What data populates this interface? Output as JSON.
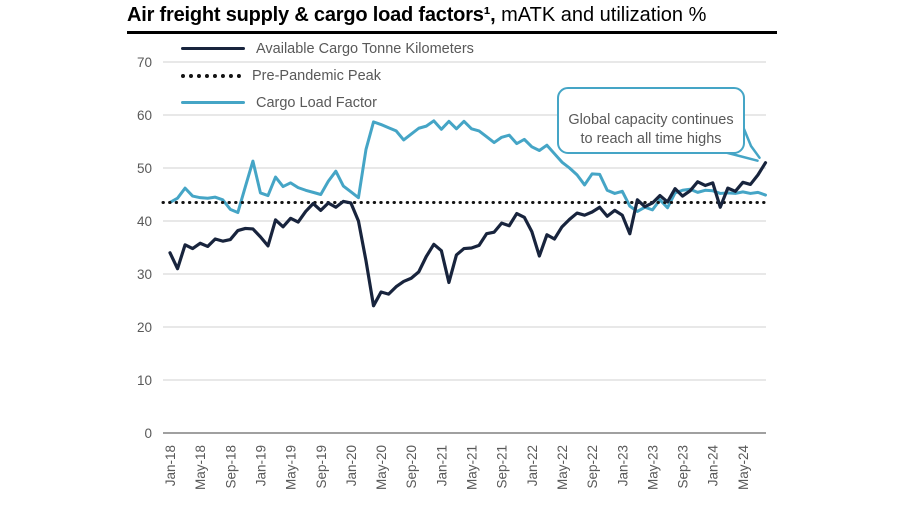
{
  "header": {
    "title_bold": "Air freight supply & cargo load factors¹,",
    "title_regular": " mATK and utilization %"
  },
  "legend": {
    "items": [
      {
        "label": "Available Cargo Tonne Kilometers",
        "color": "#18243d",
        "style": "solid"
      },
      {
        "label": "Pre-Pandemic Peak",
        "color": "#131313",
        "style": "dotted"
      },
      {
        "label": "Cargo Load Factor",
        "color": "#45a5c6",
        "style": "solid"
      }
    ]
  },
  "annotation": {
    "text": "Global capacity continues\nto reach all time highs",
    "border_color": "#45a5c6",
    "text_color": "#595959"
  },
  "colors": {
    "actk_line": "#18243d",
    "load_factor_line": "#45a5c6",
    "pre_pandemic_dotted": "#131313",
    "axis_text": "#595959",
    "gridline": "#d9d9d9",
    "axis_line": "#808080",
    "background": "#ffffff"
  },
  "chart_data": {
    "type": "line",
    "title": "Air freight supply & cargo load factors, mATK and utilization %",
    "ylim": [
      0,
      70
    ],
    "yticks": [
      0,
      10,
      20,
      30,
      40,
      50,
      60,
      70
    ],
    "grid": "horizontal",
    "legend_position": "top-left",
    "x_tick_every": 4,
    "x": [
      "Jan-18",
      "Feb-18",
      "Mar-18",
      "Apr-18",
      "May-18",
      "Jun-18",
      "Jul-18",
      "Aug-18",
      "Sep-18",
      "Oct-18",
      "Nov-18",
      "Dec-18",
      "Jan-19",
      "Feb-19",
      "Mar-19",
      "Apr-19",
      "May-19",
      "Jun-19",
      "Jul-19",
      "Aug-19",
      "Sep-19",
      "Oct-19",
      "Nov-19",
      "Dec-19",
      "Jan-20",
      "Feb-20",
      "Mar-20",
      "Apr-20",
      "May-20",
      "Jun-20",
      "Jul-20",
      "Aug-20",
      "Sep-20",
      "Oct-20",
      "Nov-20",
      "Dec-20",
      "Jan-21",
      "Feb-21",
      "Mar-21",
      "Apr-21",
      "May-21",
      "Jun-21",
      "Jul-21",
      "Aug-21",
      "Sep-21",
      "Oct-21",
      "Nov-21",
      "Dec-21",
      "Jan-22",
      "Feb-22",
      "Mar-22",
      "Apr-22",
      "May-22",
      "Jun-22",
      "Jul-22",
      "Aug-22",
      "Sep-22",
      "Oct-22",
      "Nov-22",
      "Dec-22",
      "Jan-23",
      "Feb-23",
      "Mar-23",
      "Apr-23",
      "May-23",
      "Jun-23",
      "Jul-23",
      "Aug-23",
      "Sep-23",
      "Oct-23",
      "Nov-23",
      "Dec-23",
      "Jan-24",
      "Feb-24",
      "Mar-24",
      "Apr-24",
      "May-24",
      "Jun-24",
      "Jul-24",
      "Aug-24"
    ],
    "series": [
      {
        "name": "Available Cargo Tonne Kilometers",
        "color": "#18243d",
        "style": "solid",
        "width": 3.2,
        "values": [
          34.0,
          31.0,
          35.5,
          34.8,
          35.8,
          35.2,
          36.6,
          36.2,
          36.5,
          38.2,
          38.6,
          38.5,
          37.0,
          35.3,
          40.2,
          38.9,
          40.5,
          39.8,
          41.8,
          43.3,
          42.0,
          43.4,
          42.6,
          43.7,
          43.4,
          40.0,
          32.5,
          24.0,
          26.6,
          26.2,
          27.6,
          28.6,
          29.2,
          30.4,
          33.3,
          35.6,
          34.4,
          28.4,
          33.6,
          34.8,
          34.9,
          35.4,
          37.6,
          37.9,
          39.6,
          39.1,
          41.4,
          40.7,
          38.0,
          33.4,
          37.4,
          36.6,
          38.9,
          40.3,
          41.5,
          41.1,
          41.7,
          42.6,
          40.9,
          42.0,
          41.1,
          37.6,
          44.0,
          42.7,
          43.4,
          44.8,
          43.6,
          46.1,
          44.7,
          45.7,
          47.4,
          46.7,
          47.2,
          42.6,
          46.2,
          45.6,
          47.3,
          46.9,
          48.7,
          51.0
        ]
      },
      {
        "name": "Cargo Load Factor",
        "color": "#45a5c6",
        "style": "solid",
        "width": 3,
        "values": [
          43.5,
          44.3,
          46.2,
          44.7,
          44.4,
          44.3,
          44.5,
          44.0,
          42.2,
          41.6,
          46.5,
          51.3,
          45.3,
          44.8,
          48.3,
          46.5,
          47.2,
          46.3,
          45.8,
          45.4,
          45.0,
          47.5,
          49.4,
          46.6,
          45.5,
          44.4,
          53.5,
          58.7,
          58.2,
          57.6,
          57.0,
          55.3,
          56.4,
          57.5,
          57.9,
          58.9,
          57.3,
          58.8,
          57.4,
          58.8,
          57.4,
          57.0,
          55.9,
          54.8,
          55.8,
          56.2,
          54.6,
          55.4,
          54.0,
          53.3,
          54.3,
          52.7,
          51.1,
          50.0,
          48.7,
          46.8,
          48.9,
          48.8,
          45.8,
          45.2,
          45.6,
          42.8,
          41.8,
          42.6,
          42.1,
          44.0,
          42.5,
          45.3,
          45.8,
          46.0,
          45.4,
          45.8,
          45.7,
          45.2,
          45.3,
          45.2,
          45.5,
          45.2,
          45.4,
          44.9
        ]
      },
      {
        "name": "Pre-Pandemic Peak",
        "color": "#131313",
        "style": "dotted",
        "width": 3,
        "constant_value": 43.5
      }
    ],
    "annotation": {
      "text": "Global capacity continues to reach all time highs",
      "points_to": {
        "x": "Aug-24",
        "series": "Available Cargo Tonne Kilometers",
        "value": 51.0
      }
    }
  }
}
